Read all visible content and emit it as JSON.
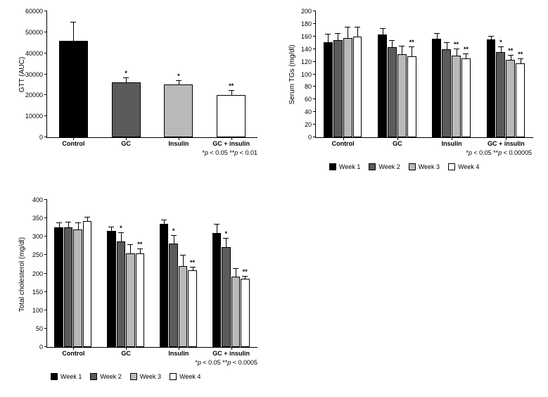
{
  "colors": {
    "week1": "#000000",
    "week2": "#5b5b5b",
    "week3": "#b9b9b9",
    "week4": "#ffffff",
    "axis": "#000000",
    "bg": "#ffffff"
  },
  "legend": {
    "items": [
      "Week 1",
      "Week 2",
      "Week 3",
      "Week 4"
    ]
  },
  "panels": {
    "gtt": {
      "ylabel": "GTT (AUC)",
      "footnote": "*p < 0.05 **p < 0.01",
      "ylim": [
        0,
        60000
      ],
      "ytick_step": 10000,
      "yticks": [
        "0",
        "10000",
        "20000",
        "30000",
        "40000",
        "50000",
        "60000"
      ],
      "categories": [
        "Control",
        "GC",
        "Insulin",
        "GC + insulin"
      ],
      "bars": [
        {
          "value": 46000,
          "err": 8500,
          "color": "week1",
          "sig": ""
        },
        {
          "value": 26000,
          "err": 2000,
          "color": "week2",
          "sig": "*"
        },
        {
          "value": 25000,
          "err": 1800,
          "color": "week3",
          "sig": "*"
        },
        {
          "value": 20000,
          "err": 2000,
          "color": "week4",
          "sig": "**"
        }
      ]
    },
    "tg": {
      "ylabel": "Serum TGs (mg/dl)",
      "footnote": "*p < 0.05 **p < 0.00005",
      "ylim": [
        0,
        200
      ],
      "ytick_step": 20,
      "yticks": [
        "0",
        "20",
        "40",
        "60",
        "80",
        "100",
        "120",
        "140",
        "160",
        "180",
        "200"
      ],
      "categories": [
        "Control",
        "GC",
        "Insulin",
        "GC + insulin"
      ],
      "groups": [
        {
          "values": [
            151,
            154,
            158,
            160
          ],
          "errs": [
            12,
            10,
            16,
            14
          ],
          "sigs": [
            "",
            "",
            "",
            ""
          ]
        },
        {
          "values": [
            163,
            143,
            132,
            128
          ],
          "errs": [
            9,
            10,
            12,
            15
          ],
          "sigs": [
            "",
            "",
            "",
            "**"
          ]
        },
        {
          "values": [
            156,
            140,
            130,
            125
          ],
          "errs": [
            8,
            10,
            10,
            7
          ],
          "sigs": [
            "",
            "",
            "**",
            "**"
          ]
        },
        {
          "values": [
            155,
            135,
            123,
            117
          ],
          "errs": [
            5,
            8,
            7,
            7
          ],
          "sigs": [
            "",
            "*",
            "**",
            "**"
          ]
        }
      ]
    },
    "chol": {
      "ylabel": "Total cholesterol (mg/dl)",
      "footnote": "*p < 0.05 **p < 0.0005",
      "ylim": [
        0,
        400
      ],
      "ytick_step": 50,
      "yticks": [
        "0",
        "50",
        "100",
        "150",
        "200",
        "250",
        "300",
        "350",
        "400"
      ],
      "categories": [
        "Control",
        "GC",
        "Insulin",
        "GC + insulin"
      ],
      "groups": [
        {
          "values": [
            325,
            325,
            320,
            342
          ],
          "errs": [
            12,
            14,
            16,
            10
          ],
          "sigs": [
            "",
            "",
            "",
            ""
          ]
        },
        {
          "values": [
            316,
            288,
            255,
            255
          ],
          "errs": [
            10,
            22,
            22,
            12
          ],
          "sigs": [
            "",
            "*",
            "",
            "**"
          ]
        },
        {
          "values": [
            335,
            282,
            220,
            208
          ],
          "errs": [
            10,
            20,
            28,
            8
          ],
          "sigs": [
            "",
            "*",
            "",
            "**"
          ]
        },
        {
          "values": [
            310,
            272,
            192,
            185
          ],
          "errs": [
            24,
            22,
            20,
            7
          ],
          "sigs": [
            "",
            "*",
            "",
            "**"
          ]
        }
      ]
    }
  }
}
